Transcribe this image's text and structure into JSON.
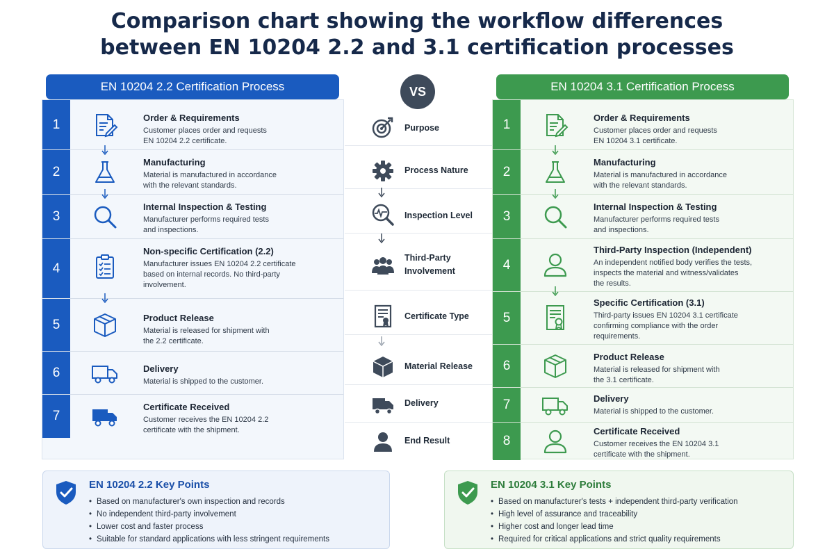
{
  "title_line1": "Comparison chart showing the workflow differences",
  "title_line2": "between EN 10204 2.2 and 3.1 certification processes",
  "left": {
    "header": "EN 10204 2.2 Certification Process",
    "steps": [
      {
        "num": "1",
        "title": "Order & Requirements",
        "desc1": "Customer places order and requests",
        "desc2": "EN 10204 2.2 certificate.",
        "icon": "document-pen-icon"
      },
      {
        "num": "2",
        "title": "Manufacturing",
        "desc1": "Material is manufactured in accordance",
        "desc2": "with the relevant standards.",
        "icon": "flask-icon"
      },
      {
        "num": "3",
        "title": "Internal Inspection & Testing",
        "desc1": "Manufacturer performs required tests",
        "desc2": "and inspections.",
        "icon": "magnifier-icon"
      },
      {
        "num": "4",
        "title": "Non-specific Certification (2.2)",
        "desc1": "Manufacturer issues EN 10204 2.2 certificate",
        "desc2": "based on internal records. No third-party",
        "desc3": "involvement.",
        "icon": "clipboard-checklist-icon"
      },
      {
        "num": "5",
        "title": "Product Release",
        "desc1": "Material is released for shipment with",
        "desc2": "the 2.2 certificate.",
        "icon": "box-icon"
      },
      {
        "num": "6",
        "title": "Delivery",
        "desc1": "Material is shipped to the customer.",
        "icon": "truck-icon"
      },
      {
        "num": "7",
        "title": "Certificate Received",
        "desc1": "Customer receives the EN 10204 2.2",
        "desc2": "certificate with the shipment.",
        "icon": "truck-icon"
      }
    ]
  },
  "vs_label": "VS",
  "middle": [
    {
      "label": "Purpose",
      "icon": "target-icon"
    },
    {
      "label": "Process Nature",
      "icon": "gear-icon"
    },
    {
      "label": "Inspection Level",
      "icon": "magnifier-pulse-icon"
    },
    {
      "label1": "Third-Party",
      "label2": "Involvement",
      "icon": "people-icon"
    },
    {
      "label": "Certificate Type",
      "icon": "certificate-icon"
    },
    {
      "label": "Material Release",
      "icon": "box-icon"
    },
    {
      "label": "Delivery",
      "icon": "truck-icon"
    },
    {
      "label": "End Result",
      "icon": "user-icon"
    }
  ],
  "right": {
    "header": "EN 10204 3.1 Certification Process",
    "steps": [
      {
        "num": "1",
        "title": "Order & Requirements",
        "desc1": "Customer places order and requests",
        "desc2": "EN 10204 3.1 certificate.",
        "icon": "document-pen-icon"
      },
      {
        "num": "2",
        "title": "Manufacturing",
        "desc1": "Material is manufactured in accordance",
        "desc2": "with the relevant standards.",
        "icon": "flask-icon"
      },
      {
        "num": "3",
        "title": "Internal Inspection & Testing",
        "desc1": "Manufacturer performs required tests",
        "desc2": "and inspections.",
        "icon": "magnifier-icon"
      },
      {
        "num": "4",
        "title": "Third-Party Inspection (Independent)",
        "desc1": "An independent notified body verifies the tests,",
        "desc2": "inspects the material and witness/validates",
        "desc3": "the results.",
        "icon": "user-icon"
      },
      {
        "num": "5",
        "title": "Specific Certification (3.1)",
        "desc1": "Third-party issues EN 10204 3.1 certificate",
        "desc2": "confirming compliance with the order",
        "desc3": "requirements.",
        "icon": "certificate-icon"
      },
      {
        "num": "6",
        "title": "Product Release",
        "desc1": "Material is released for shipment with",
        "desc2": "the 3.1 certificate.",
        "icon": "box-icon"
      },
      {
        "num": "7",
        "title": "Delivery",
        "desc1": "Material is shipped to the customer.",
        "icon": "truck-icon"
      },
      {
        "num": "8",
        "title": "Certificate Received",
        "desc1": "Customer receives the EN 10204 3.1",
        "desc2": "certificate with the shipment.",
        "icon": "user-icon"
      }
    ]
  },
  "left_key_points": {
    "title": "EN 10204 2.2 Key Points",
    "items": [
      "Based on manufacturer's own inspection and records",
      "No independent third-party involvement",
      "Lower cost and faster process",
      "Suitable for standard applications with less stringent requirements"
    ]
  },
  "right_key_points": {
    "title": "EN 10204 3.1 Key Points",
    "items": [
      "Based on manufacturer's tests + independent third-party verification",
      "High level of assurance and traceability",
      "Higher cost and longer lead time",
      "Required for critical applications and strict quality requirements"
    ]
  },
  "colors": {
    "blue": "#1a5bbf",
    "green": "#3d9a4f",
    "navy": "#16294a"
  }
}
